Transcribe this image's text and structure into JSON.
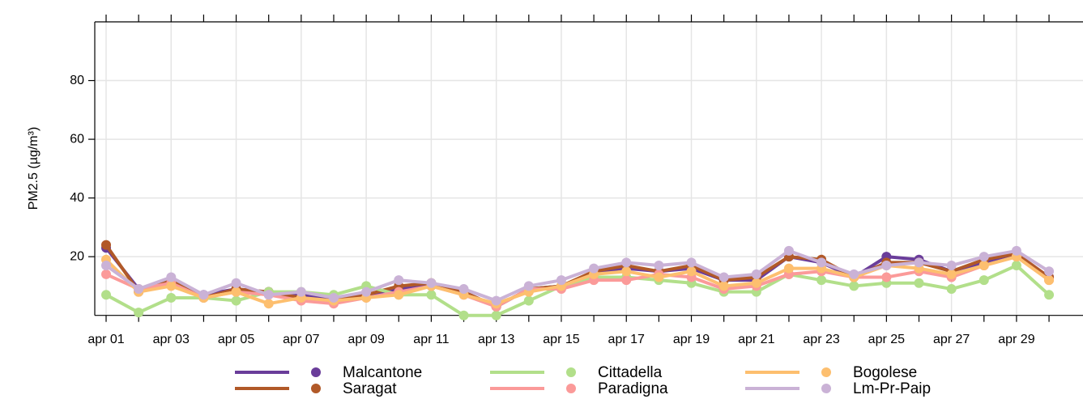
{
  "chart_data": {
    "type": "line",
    "y_label": "PM2.5 (µg/m³)",
    "categories": [
      "apr 01",
      null,
      "apr 03",
      null,
      "apr 05",
      null,
      "apr 07",
      null,
      "apr 09",
      null,
      "apr 11",
      null,
      "apr 13",
      null,
      "apr 15",
      null,
      "apr 17",
      null,
      "apr 19",
      null,
      "apr 21",
      null,
      "apr 23",
      null,
      "apr 25",
      null,
      "apr 27",
      null,
      "apr 29",
      null
    ],
    "ylim": [
      0,
      100
    ],
    "yticks": [
      20,
      40,
      60,
      80
    ],
    "grid": true,
    "series": [
      {
        "name": "Malcantone",
        "color": "#6a3d9a",
        "values": [
          23,
          9,
          11,
          7,
          9,
          8,
          7,
          6,
          7,
          9,
          10,
          8,
          3,
          9,
          10,
          14,
          16,
          15,
          16,
          12,
          12,
          20,
          18,
          13,
          20,
          19,
          15,
          18,
          21,
          13
        ]
      },
      {
        "name": "Saragat",
        "color": "#b15928",
        "values": [
          24,
          8,
          12,
          6,
          9,
          8,
          6,
          5,
          7,
          10,
          11,
          8,
          3,
          9,
          10,
          15,
          17,
          15,
          17,
          12,
          13,
          20,
          19,
          13,
          18,
          18,
          15,
          19,
          21,
          13
        ]
      },
      {
        "name": "Cittadella",
        "color": "#b2df8a",
        "values": [
          7,
          1,
          6,
          6,
          5,
          8,
          8,
          7,
          10,
          7,
          7,
          0,
          0,
          5,
          10,
          13,
          13,
          12,
          11,
          8,
          8,
          14,
          12,
          10,
          11,
          11,
          9,
          12,
          17,
          7
        ]
      },
      {
        "name": "Paradigna",
        "color": "#fb9a99",
        "values": [
          14,
          9,
          11,
          6,
          8,
          7,
          5,
          4,
          6,
          8,
          10,
          7,
          3,
          9,
          9,
          12,
          12,
          14,
          13,
          9,
          10,
          14,
          15,
          13,
          13,
          15,
          13,
          17,
          20,
          12
        ]
      },
      {
        "name": "Bogolese",
        "color": "#fdbf6f",
        "values": [
          19,
          8,
          10,
          6,
          8,
          4,
          6,
          5,
          6,
          7,
          10,
          7,
          4,
          8,
          10,
          14,
          15,
          13,
          15,
          10,
          11,
          16,
          16,
          13,
          17,
          16,
          14,
          17,
          20,
          12
        ]
      },
      {
        "name": "Lm-Pr-Paip",
        "color": "#cab2d6",
        "values": [
          17,
          9,
          13,
          7,
          11,
          7,
          8,
          6,
          8,
          12,
          11,
          9,
          5,
          10,
          12,
          16,
          18,
          17,
          18,
          13,
          14,
          22,
          18,
          14,
          17,
          18,
          17,
          20,
          22,
          15
        ]
      }
    ]
  }
}
